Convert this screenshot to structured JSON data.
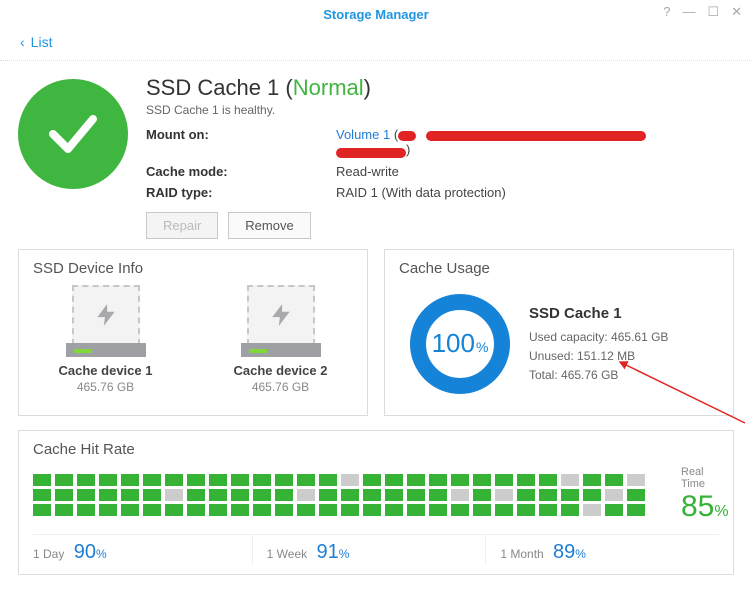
{
  "window": {
    "title": "Storage Manager",
    "back_label": "List"
  },
  "header": {
    "name": "SSD Cache 1",
    "status": "Normal",
    "subtext": "SSD Cache 1 is healthy.",
    "rows": {
      "mount_label": "Mount on:",
      "mount_value": "Volume 1",
      "cache_mode_label": "Cache mode:",
      "cache_mode_value": "Read-write",
      "raid_label": "RAID type:",
      "raid_value": "RAID 1 (With data protection)"
    },
    "buttons": {
      "repair": "Repair",
      "remove": "Remove"
    },
    "ok_color": "#3fb63f"
  },
  "device_info": {
    "title": "SSD Device Info",
    "devices": [
      {
        "name": "Cache device 1",
        "capacity": "465.76 GB"
      },
      {
        "name": "Cache device 2",
        "capacity": "465.76 GB"
      }
    ]
  },
  "cache_usage": {
    "title": "Cache Usage",
    "percent": 100,
    "donut_color": "#1584d8",
    "donut_track": "#e6e6e6",
    "name": "SSD Cache 1",
    "used_label": "Used capacity:",
    "used_value": "465.61 GB",
    "unused_label": "Unused:",
    "unused_value": "151.12 MB",
    "total_label": "Total:",
    "total_value": "465.76 GB"
  },
  "hit_rate": {
    "title": "Cache Hit Rate",
    "cell_on_color": "#36b336",
    "cell_off_color": "#cccccc",
    "columns": [
      [
        1,
        1,
        1
      ],
      [
        1,
        1,
        1
      ],
      [
        1,
        1,
        1
      ],
      [
        1,
        1,
        1
      ],
      [
        1,
        1,
        1
      ],
      [
        1,
        1,
        1
      ],
      [
        1,
        0,
        1
      ],
      [
        1,
        1,
        1
      ],
      [
        1,
        1,
        1
      ],
      [
        1,
        1,
        1
      ],
      [
        1,
        1,
        1
      ],
      [
        1,
        1,
        1
      ],
      [
        1,
        0,
        1
      ],
      [
        1,
        1,
        1
      ],
      [
        0,
        1,
        1
      ],
      [
        1,
        1,
        1
      ],
      [
        1,
        1,
        1
      ],
      [
        1,
        1,
        1
      ],
      [
        1,
        1,
        1
      ],
      [
        1,
        0,
        1
      ],
      [
        1,
        1,
        1
      ],
      [
        1,
        0,
        1
      ],
      [
        1,
        1,
        1
      ],
      [
        1,
        1,
        1
      ],
      [
        0,
        1,
        1
      ],
      [
        1,
        1,
        0
      ],
      [
        1,
        0,
        1
      ],
      [
        0,
        1,
        1
      ]
    ],
    "realtime_label": "Real Time",
    "realtime_value": 85,
    "ranges": {
      "day_label": "1 Day",
      "day_value": 90,
      "week_label": "1 Week",
      "week_value": 91,
      "month_label": "1 Month",
      "month_value": 89
    }
  },
  "annotation": {
    "arrow_color": "#e02424"
  }
}
